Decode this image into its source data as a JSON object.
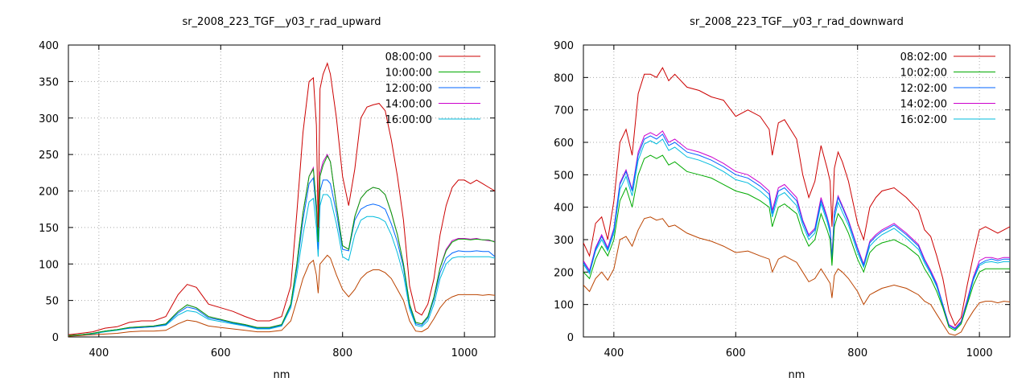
{
  "chart_data": [
    {
      "type": "line",
      "title": "sr_2008_223_TGF__y03_r_rad_upward",
      "xlabel": "nm",
      "ylabel": "",
      "xlim": [
        350,
        1050
      ],
      "ylim": [
        0,
        400
      ],
      "xticks": [
        400,
        600,
        800,
        1000
      ],
      "yticks": [
        0,
        50,
        100,
        150,
        200,
        250,
        300,
        350,
        400
      ],
      "grid": true,
      "legend_position": "top-right",
      "x": [
        350,
        370,
        390,
        410,
        430,
        450,
        470,
        490,
        510,
        530,
        545,
        560,
        580,
        600,
        620,
        640,
        660,
        680,
        700,
        715,
        725,
        735,
        745,
        752,
        757,
        760,
        763,
        768,
        775,
        780,
        790,
        800,
        810,
        820,
        830,
        840,
        850,
        860,
        870,
        880,
        890,
        900,
        910,
        920,
        930,
        940,
        950,
        960,
        970,
        980,
        990,
        1000,
        1010,
        1020,
        1030,
        1040,
        1050
      ],
      "series": [
        {
          "name": "08:00:00",
          "color": "#cc0000",
          "values": [
            3,
            5,
            7,
            12,
            14,
            20,
            22,
            22,
            28,
            58,
            72,
            68,
            45,
            40,
            35,
            28,
            22,
            22,
            28,
            70,
            170,
            280,
            350,
            355,
            290,
            150,
            340,
            360,
            375,
            360,
            300,
            220,
            180,
            230,
            300,
            315,
            318,
            320,
            310,
            270,
            220,
            160,
            70,
            35,
            30,
            45,
            80,
            140,
            180,
            205,
            215,
            215,
            210,
            215,
            210,
            205,
            200
          ]
        },
        {
          "name": "10:00:00",
          "color": "#00aa00",
          "values": [
            2,
            3,
            5,
            8,
            10,
            13,
            14,
            15,
            18,
            35,
            44,
            40,
            28,
            24,
            20,
            17,
            13,
            13,
            17,
            45,
            100,
            170,
            220,
            230,
            180,
            130,
            220,
            235,
            248,
            240,
            180,
            125,
            120,
            165,
            190,
            200,
            205,
            203,
            195,
            170,
            140,
            100,
            45,
            20,
            18,
            28,
            55,
            95,
            118,
            130,
            134,
            134,
            133,
            134,
            133,
            133,
            130
          ]
        },
        {
          "name": "12:00:00",
          "color": "#0066ff",
          "values": [
            2,
            3,
            5,
            8,
            10,
            12,
            13,
            14,
            17,
            33,
            41,
            38,
            26,
            23,
            19,
            16,
            12,
            12,
            16,
            43,
            95,
            160,
            210,
            218,
            170,
            120,
            200,
            215,
            215,
            210,
            170,
            120,
            118,
            160,
            175,
            180,
            182,
            180,
            175,
            155,
            130,
            95,
            42,
            18,
            16,
            26,
            52,
            88,
            108,
            115,
            118,
            117,
            117,
            118,
            117,
            117,
            110
          ]
        },
        {
          "name": "14:00:00",
          "color": "#cc00cc",
          "values": [
            2,
            3,
            5,
            8,
            10,
            13,
            14,
            15,
            18,
            35,
            44,
            40,
            28,
            24,
            20,
            17,
            13,
            13,
            17,
            45,
            100,
            170,
            220,
            232,
            180,
            135,
            225,
            240,
            250,
            240,
            180,
            125,
            120,
            165,
            190,
            200,
            205,
            203,
            195,
            170,
            140,
            100,
            45,
            20,
            18,
            28,
            55,
            95,
            120,
            132,
            135,
            135,
            134,
            135,
            133,
            132,
            131
          ]
        },
        {
          "name": "16:00:00",
          "color": "#00bbdd",
          "values": [
            2,
            3,
            4,
            7,
            9,
            12,
            13,
            14,
            16,
            30,
            36,
            34,
            24,
            21,
            18,
            15,
            11,
            11,
            15,
            40,
            85,
            140,
            185,
            190,
            150,
            110,
            180,
            195,
            195,
            190,
            155,
            110,
            105,
            140,
            160,
            165,
            165,
            163,
            158,
            140,
            115,
            85,
            38,
            16,
            14,
            22,
            45,
            80,
            100,
            108,
            110,
            110,
            110,
            110,
            110,
            110,
            108
          ]
        },
        {
          "name": "",
          "color": "#bb4400",
          "values": [
            1,
            2,
            3,
            4,
            5,
            7,
            8,
            8,
            9,
            18,
            23,
            21,
            15,
            13,
            11,
            9,
            7,
            7,
            9,
            22,
            50,
            80,
            100,
            105,
            85,
            60,
            100,
            105,
            112,
            108,
            85,
            65,
            55,
            65,
            80,
            88,
            92,
            92,
            88,
            80,
            65,
            50,
            22,
            8,
            7,
            12,
            25,
            40,
            50,
            55,
            58,
            58,
            58,
            58,
            57,
            58,
            57
          ]
        }
      ]
    },
    {
      "type": "line",
      "title": "sr_2008_223_TGF__y03_r_rad_downward",
      "xlabel": "nm",
      "ylabel": "",
      "xlim": [
        350,
        1050
      ],
      "ylim": [
        0,
        900
      ],
      "xticks": [
        400,
        600,
        800,
        1000
      ],
      "yticks": [
        0,
        100,
        200,
        300,
        400,
        500,
        600,
        700,
        800,
        900
      ],
      "grid": true,
      "legend_position": "top-right",
      "x": [
        350,
        360,
        370,
        380,
        390,
        400,
        410,
        420,
        430,
        440,
        450,
        460,
        470,
        480,
        490,
        500,
        520,
        540,
        560,
        580,
        600,
        620,
        640,
        655,
        660,
        670,
        680,
        700,
        710,
        720,
        730,
        740,
        750,
        755,
        758,
        762,
        768,
        775,
        785,
        800,
        810,
        820,
        830,
        840,
        860,
        880,
        900,
        910,
        920,
        930,
        940,
        950,
        960,
        970,
        980,
        990,
        1000,
        1010,
        1020,
        1030,
        1040,
        1050
      ],
      "series": [
        {
          "name": "08:02:00",
          "color": "#cc0000",
          "values": [
            290,
            250,
            350,
            370,
            300,
            420,
            600,
            640,
            560,
            750,
            810,
            810,
            800,
            830,
            790,
            810,
            770,
            760,
            740,
            730,
            680,
            700,
            680,
            640,
            560,
            660,
            670,
            610,
            500,
            430,
            480,
            590,
            520,
            480,
            340,
            520,
            570,
            540,
            480,
            350,
            300,
            400,
            430,
            450,
            460,
            430,
            390,
            330,
            310,
            250,
            180,
            80,
            35,
            60,
            160,
            250,
            330,
            340,
            330,
            320,
            330,
            340
          ]
        },
        {
          "name": "10:02:00",
          "color": "#00aa00",
          "values": [
            200,
            180,
            240,
            280,
            250,
            300,
            420,
            460,
            400,
            500,
            550,
            560,
            550,
            560,
            530,
            540,
            510,
            500,
            490,
            470,
            450,
            440,
            420,
            400,
            340,
            400,
            410,
            380,
            320,
            280,
            300,
            380,
            330,
            300,
            220,
            340,
            380,
            360,
            320,
            240,
            200,
            260,
            280,
            290,
            300,
            280,
            250,
            210,
            180,
            140,
            90,
            30,
            20,
            40,
            100,
            160,
            200,
            210,
            210,
            210,
            210,
            210
          ]
        },
        {
          "name": "12:02:00",
          "color": "#0066ff",
          "values": [
            230,
            200,
            270,
            310,
            270,
            330,
            470,
            510,
            450,
            560,
            610,
            620,
            610,
            625,
            590,
            600,
            570,
            560,
            545,
            525,
            500,
            490,
            465,
            440,
            380,
            450,
            460,
            420,
            355,
            310,
            330,
            420,
            365,
            330,
            240,
            380,
            430,
            400,
            355,
            270,
            220,
            290,
            310,
            325,
            345,
            315,
            280,
            235,
            200,
            160,
            100,
            35,
            25,
            45,
            110,
            180,
            225,
            235,
            240,
            235,
            240,
            240
          ]
        },
        {
          "name": "14:02:00",
          "color": "#cc00cc",
          "values": [
            235,
            205,
            275,
            315,
            275,
            335,
            475,
            515,
            455,
            570,
            620,
            630,
            620,
            635,
            600,
            610,
            580,
            570,
            555,
            535,
            510,
            500,
            475,
            450,
            390,
            460,
            470,
            430,
            360,
            315,
            335,
            430,
            370,
            335,
            245,
            385,
            435,
            405,
            360,
            275,
            225,
            295,
            315,
            330,
            350,
            320,
            285,
            240,
            205,
            165,
            100,
            38,
            28,
            48,
            115,
            185,
            235,
            245,
            245,
            240,
            245,
            245
          ]
        },
        {
          "name": "16:02:00",
          "color": "#00bbdd",
          "values": [
            225,
            195,
            265,
            300,
            265,
            320,
            455,
            495,
            435,
            545,
            595,
            605,
            595,
            610,
            575,
            585,
            555,
            545,
            530,
            510,
            485,
            475,
            450,
            425,
            370,
            435,
            445,
            405,
            345,
            300,
            320,
            410,
            355,
            320,
            235,
            365,
            415,
            385,
            345,
            260,
            215,
            280,
            300,
            315,
            335,
            305,
            270,
            228,
            195,
            155,
            95,
            34,
            24,
            44,
            105,
            175,
            220,
            230,
            232,
            228,
            232,
            232
          ]
        },
        {
          "name": "",
          "color": "#bb4400",
          "values": [
            160,
            140,
            180,
            200,
            175,
            210,
            300,
            310,
            280,
            330,
            365,
            370,
            360,
            365,
            340,
            345,
            320,
            305,
            295,
            280,
            260,
            265,
            250,
            240,
            200,
            240,
            250,
            230,
            200,
            170,
            180,
            210,
            180,
            165,
            120,
            190,
            210,
            200,
            180,
            140,
            100,
            130,
            140,
            150,
            160,
            150,
            130,
            110,
            100,
            70,
            40,
            10,
            5,
            15,
            50,
            80,
            105,
            110,
            110,
            105,
            110,
            108
          ]
        }
      ]
    }
  ]
}
